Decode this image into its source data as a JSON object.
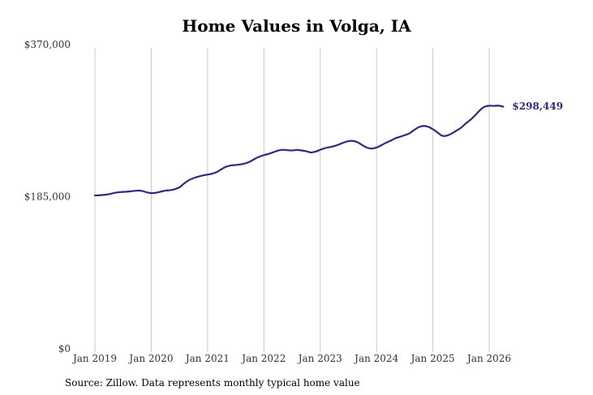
{
  "chart_data": {
    "type": "line",
    "title": "Home Values in Volga, IA",
    "xlabel": "",
    "ylabel": "",
    "ylim": [
      0,
      370000
    ],
    "yticks": [
      {
        "value": 0,
        "label": "$0"
      },
      {
        "value": 185000,
        "label": "$185,000"
      },
      {
        "value": 370000,
        "label": "$370,000"
      }
    ],
    "xlim": [
      "2019-01",
      "2026-06"
    ],
    "xticks": [
      "Jan 2019",
      "Jan 2020",
      "Jan 2021",
      "Jan 2022",
      "Jan 2023",
      "Jan 2024",
      "Jan 2025",
      "Jan 2026"
    ],
    "grid": "vertical",
    "series": [
      {
        "color": "#2e2a7c",
        "end_label": "$298,449",
        "points": [
          [
            "2019-01",
            190500
          ],
          [
            "2019-02",
            190700
          ],
          [
            "2019-03",
            191200
          ],
          [
            "2019-04",
            192000
          ],
          [
            "2019-05",
            193300
          ],
          [
            "2019-06",
            194300
          ],
          [
            "2019-07",
            194800
          ],
          [
            "2019-08",
            195100
          ],
          [
            "2019-09",
            195800
          ],
          [
            "2019-10",
            196300
          ],
          [
            "2019-11",
            196000
          ],
          [
            "2019-12",
            194300
          ],
          [
            "2020-01",
            193300
          ],
          [
            "2020-02",
            193700
          ],
          [
            "2020-03",
            195000
          ],
          [
            "2020-04",
            196300
          ],
          [
            "2020-05",
            196800
          ],
          [
            "2020-06",
            198000
          ],
          [
            "2020-07",
            200300
          ],
          [
            "2020-08",
            205000
          ],
          [
            "2020-09",
            209000
          ],
          [
            "2020-10",
            211500
          ],
          [
            "2020-11",
            213300
          ],
          [
            "2020-12",
            214800
          ],
          [
            "2021-01",
            215800
          ],
          [
            "2021-02",
            217000
          ],
          [
            "2021-03",
            219000
          ],
          [
            "2021-04",
            222500
          ],
          [
            "2021-05",
            225500
          ],
          [
            "2021-06",
            227000
          ],
          [
            "2021-07",
            227500
          ],
          [
            "2021-08",
            228200
          ],
          [
            "2021-09",
            229500
          ],
          [
            "2021-10",
            231500
          ],
          [
            "2021-11",
            234800
          ],
          [
            "2021-12",
            237500
          ],
          [
            "2022-01",
            239500
          ],
          [
            "2022-02",
            241000
          ],
          [
            "2022-03",
            243000
          ],
          [
            "2022-04",
            245000
          ],
          [
            "2022-05",
            246000
          ],
          [
            "2022-06",
            245500
          ],
          [
            "2022-07",
            245200
          ],
          [
            "2022-08",
            245800
          ],
          [
            "2022-09",
            245200
          ],
          [
            "2022-10",
            244300
          ],
          [
            "2022-11",
            242800
          ],
          [
            "2022-12",
            243800
          ],
          [
            "2023-01",
            246000
          ],
          [
            "2023-02",
            248000
          ],
          [
            "2023-03",
            249200
          ],
          [
            "2023-04",
            250500
          ],
          [
            "2023-05",
            252500
          ],
          [
            "2023-06",
            254800
          ],
          [
            "2023-07",
            256500
          ],
          [
            "2023-08",
            256800
          ],
          [
            "2023-09",
            255000
          ],
          [
            "2023-10",
            251500
          ],
          [
            "2023-11",
            248500
          ],
          [
            "2023-12",
            247500
          ],
          [
            "2024-01",
            248800
          ],
          [
            "2024-02",
            251500
          ],
          [
            "2024-03",
            254500
          ],
          [
            "2024-04",
            257000
          ],
          [
            "2024-05",
            260000
          ],
          [
            "2024-06",
            261800
          ],
          [
            "2024-07",
            263800
          ],
          [
            "2024-08",
            266000
          ],
          [
            "2024-09",
            270000
          ],
          [
            "2024-10",
            273500
          ],
          [
            "2024-11",
            275000
          ],
          [
            "2024-12",
            274000
          ],
          [
            "2025-01",
            271000
          ],
          [
            "2025-02",
            267000
          ],
          [
            "2025-03",
            263000
          ],
          [
            "2025-04",
            263300
          ],
          [
            "2025-05",
            265800
          ],
          [
            "2025-06",
            269300
          ],
          [
            "2025-07",
            272800
          ],
          [
            "2025-08",
            278000
          ],
          [
            "2025-09",
            282500
          ],
          [
            "2025-10",
            288000
          ],
          [
            "2025-11",
            294000
          ],
          [
            "2025-12",
            298300
          ],
          [
            "2026-01",
            299600
          ],
          [
            "2026-02",
            299400
          ],
          [
            "2026-03",
            299700
          ],
          [
            "2026-04",
            298449
          ]
        ]
      }
    ]
  },
  "source_note": "Source: Zillow. Data represents monthly typical home value"
}
